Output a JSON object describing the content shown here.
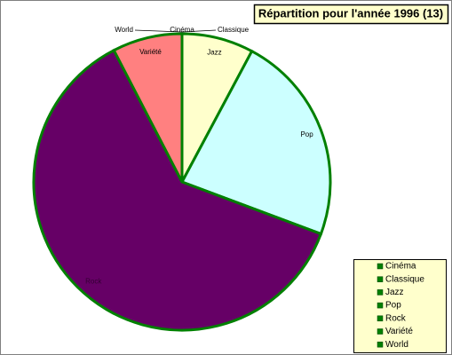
{
  "chart_data": {
    "type": "pie",
    "title": "Répartition pour l'année 1996 (13)",
    "categories": [
      "Cinéma",
      "Classique",
      "Jazz",
      "Pop",
      "Rock",
      "Variété",
      "World"
    ],
    "values": [
      0,
      0,
      7.8,
      22.9,
      61.7,
      7.6,
      0
    ],
    "colors": [
      "#ffffcc",
      "#ffffcc",
      "#ffffcc",
      "#ccffff",
      "#660066",
      "#ff8080",
      "#ffffcc"
    ],
    "border_color": "#008000",
    "legend": "bottom-right"
  }
}
